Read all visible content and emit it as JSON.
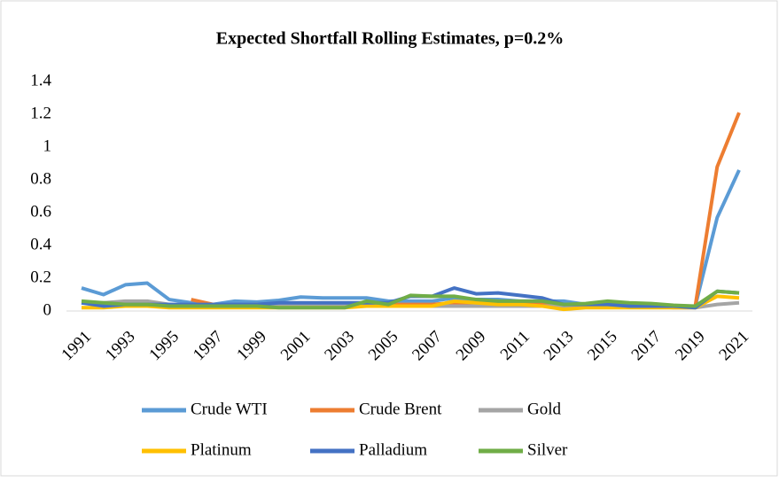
{
  "chart_data": {
    "type": "line",
    "title": "Expected Shortfall Rolling Estimates, p=0.2%",
    "categories": [
      "1991",
      null,
      "1993",
      null,
      "1995",
      null,
      "1997",
      null,
      "1999",
      null,
      "2001",
      null,
      "2003",
      null,
      "2005",
      null,
      "2007",
      null,
      "2009",
      null,
      "2011",
      null,
      "2013",
      null,
      "2015",
      null,
      "2017",
      null,
      "2019",
      null,
      "2021"
    ],
    "ylim": [
      0,
      1.4
    ],
    "yticks": [
      0,
      0.2,
      0.4,
      0.6,
      0.8,
      1,
      1.2,
      1.4
    ],
    "grid": false,
    "legend": "bottom",
    "series": [
      {
        "name": "Crude WTI",
        "color": "#5b9bd5",
        "values": [
          0.14,
          0.1,
          0.16,
          0.17,
          0.07,
          0.05,
          0.04,
          0.06,
          0.055,
          0.065,
          0.085,
          0.08,
          0.08,
          0.08,
          0.06,
          0.06,
          0.06,
          0.08,
          0.07,
          0.07,
          0.06,
          0.06,
          0.06,
          0.04,
          0.04,
          0.04,
          0.04,
          0.03,
          0.03,
          0.57,
          0.86
        ]
      },
      {
        "name": "Crude Brent",
        "color": "#ed7d31",
        "values": [
          null,
          null,
          null,
          null,
          null,
          0.07,
          0.04,
          0.03,
          0.04,
          0.04,
          0.04,
          0.04,
          0.04,
          0.04,
          0.04,
          0.04,
          0.04,
          0.05,
          0.05,
          0.05,
          0.05,
          0.05,
          0.04,
          0.04,
          0.04,
          0.04,
          0.04,
          0.03,
          0.03,
          0.88,
          1.21
        ]
      },
      {
        "name": "Gold",
        "color": "#a5a5a5",
        "values": [
          0.05,
          0.05,
          0.06,
          0.06,
          0.04,
          0.03,
          0.03,
          0.03,
          0.03,
          0.03,
          0.03,
          0.03,
          0.03,
          0.03,
          0.03,
          0.03,
          0.03,
          0.03,
          0.03,
          0.03,
          0.03,
          0.03,
          0.03,
          0.03,
          0.03,
          0.03,
          0.03,
          0.02,
          0.02,
          0.04,
          0.05
        ]
      },
      {
        "name": "Platinum",
        "color": "#ffc000",
        "values": [
          0.02,
          0.02,
          0.03,
          0.03,
          0.02,
          0.02,
          0.02,
          0.02,
          0.02,
          0.02,
          0.02,
          0.02,
          0.02,
          0.03,
          0.03,
          0.03,
          0.03,
          0.06,
          0.05,
          0.04,
          0.04,
          0.03,
          0.01,
          0.02,
          0.02,
          0.02,
          0.02,
          0.02,
          0.02,
          0.09,
          0.08
        ]
      },
      {
        "name": "Palladium",
        "color": "#4472c4",
        "values": [
          0.05,
          0.03,
          0.04,
          0.04,
          0.04,
          0.04,
          0.04,
          0.04,
          0.04,
          0.05,
          0.05,
          0.05,
          0.05,
          0.05,
          0.05,
          0.09,
          0.09,
          0.14,
          0.105,
          0.11,
          0.095,
          0.08,
          0.04,
          0.04,
          0.04,
          0.03,
          0.03,
          0.03,
          0.02,
          0.12,
          0.11
        ]
      },
      {
        "name": "Silver",
        "color": "#70ad47",
        "values": [
          0.06,
          0.05,
          0.04,
          0.04,
          0.03,
          0.03,
          0.03,
          0.03,
          0.03,
          0.02,
          0.02,
          0.02,
          0.02,
          0.06,
          0.04,
          0.095,
          0.09,
          0.09,
          0.07,
          0.06,
          0.06,
          0.06,
          0.04,
          0.045,
          0.06,
          0.05,
          0.045,
          0.035,
          0.03,
          0.12,
          0.11
        ]
      }
    ]
  }
}
